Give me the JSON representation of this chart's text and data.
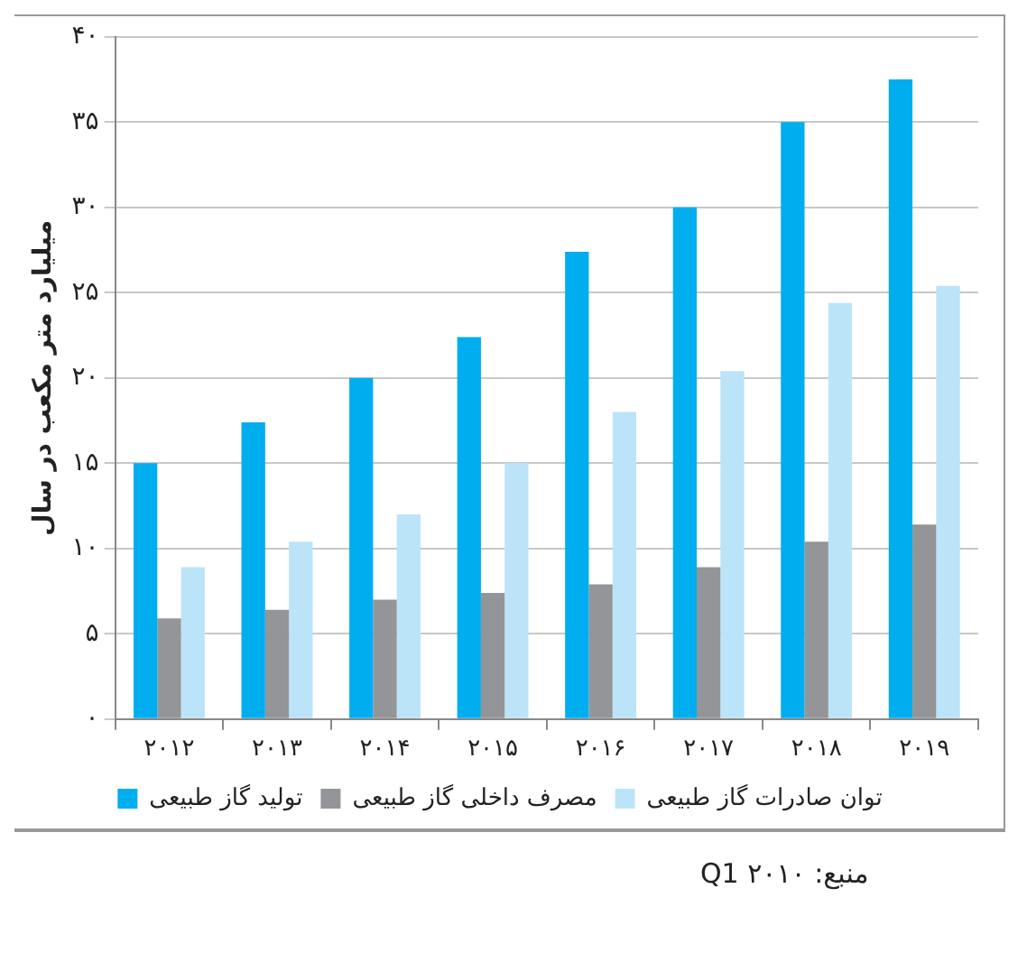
{
  "chart_data": {
    "type": "bar",
    "ylabel": "میلیارد متر مکعب در سال",
    "categories": [
      "۲۰۱۲",
      "۲۰۱۳",
      "۲۰۱۴",
      "۲۰۱۵",
      "۲۰۱۶",
      "۲۰۱۷",
      "۲۰۱۸",
      "۲۰۱۹"
    ],
    "series": [
      {
        "name": "تولید گاز طبیعی",
        "color": "#00adef",
        "values": [
          15,
          17.4,
          20,
          22.4,
          27.4,
          30,
          35,
          37.5
        ]
      },
      {
        "name": "مصرف داخلی گاز طبیعی",
        "color": "#939598",
        "values": [
          5.9,
          6.4,
          7.0,
          7.4,
          7.9,
          8.9,
          10.4,
          11.4
        ]
      },
      {
        "name": "توان صادرات گاز طبیعی",
        "color": "#bce4f8",
        "values": [
          8.9,
          10.4,
          12.0,
          15.0,
          18.0,
          20.4,
          24.4,
          25.4
        ]
      }
    ],
    "ylim": [
      0,
      40
    ],
    "yticks": [
      {
        "value": 0,
        "label": "۰"
      },
      {
        "value": 5,
        "label": "۵"
      },
      {
        "value": 10,
        "label": "۱۰"
      },
      {
        "value": 15,
        "label": "۱۵"
      },
      {
        "value": 20,
        "label": "۲۰"
      },
      {
        "value": 25,
        "label": "۲۵"
      },
      {
        "value": 30,
        "label": "۳۰"
      },
      {
        "value": 35,
        "label": "۳۵"
      },
      {
        "value": 40,
        "label": "۴۰"
      }
    ],
    "grid": "y",
    "legend": "bottom",
    "annotations": [
      "منبع: Q1 ۲۰۱۰"
    ]
  }
}
